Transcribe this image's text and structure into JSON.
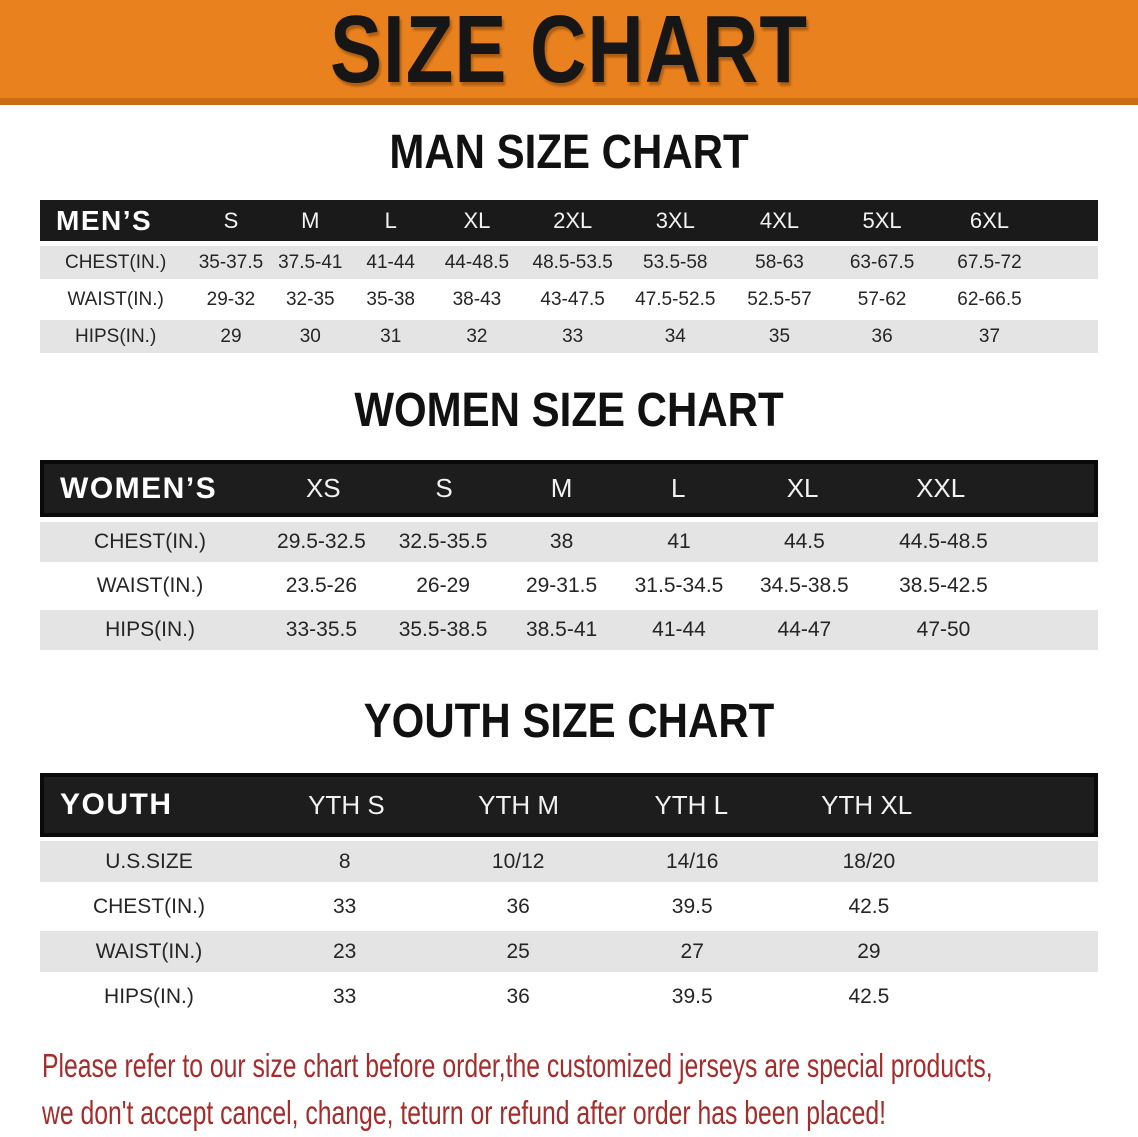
{
  "banner": {
    "title": "SIZE CHART"
  },
  "sections": [
    {
      "key": "men",
      "title": "MAN SIZE CHART",
      "table": {
        "header_label": "MEN’S",
        "columns": [
          "S",
          "M",
          "L",
          "XL",
          "2XL",
          "3XL",
          "4XL",
          "5XL",
          "6XL"
        ],
        "rows": [
          {
            "label": "CHEST(IN.)",
            "values": [
              "35-37.5",
              "37.5-41",
              "41-44",
              "44-48.5",
              "48.5-53.5",
              "53.5-58",
              "58-63",
              "63-67.5",
              "67.5-72"
            ]
          },
          {
            "label": "WAIST(IN.)",
            "values": [
              "29-32",
              "32-35",
              "35-38",
              "38-43",
              "43-47.5",
              "47.5-52.5",
              "52.5-57",
              "57-62",
              "62-66.5"
            ]
          },
          {
            "label": "HIPS(IN.)",
            "values": [
              "29",
              "30",
              "31",
              "32",
              "33",
              "34",
              "35",
              "36",
              "37"
            ]
          }
        ]
      }
    },
    {
      "key": "women",
      "title": "WOMEN SIZE CHART",
      "table": {
        "header_label": "WOMEN’S",
        "columns": [
          "XS",
          "S",
          "M",
          "L",
          "XL",
          "XXL"
        ],
        "rows": [
          {
            "label": "CHEST(IN.)",
            "values": [
              "29.5-32.5",
              "32.5-35.5",
              "38",
              "41",
              "44.5",
              "44.5-48.5"
            ]
          },
          {
            "label": "WAIST(IN.)",
            "values": [
              "23.5-26",
              "26-29",
              "29-31.5",
              "31.5-34.5",
              "34.5-38.5",
              "38.5-42.5"
            ]
          },
          {
            "label": "HIPS(IN.)",
            "values": [
              "33-35.5",
              "35.5-38.5",
              "38.5-41",
              "41-44",
              "44-47",
              "47-50"
            ]
          }
        ]
      }
    },
    {
      "key": "youth",
      "title": "YOUTH SIZE CHART",
      "table": {
        "header_label": "YOUTH",
        "columns": [
          "YTH S",
          "YTH M",
          "YTH L",
          "YTH XL"
        ],
        "rows": [
          {
            "label": "U.S.SIZE",
            "values": [
              "8",
              "10/12",
              "14/16",
              "18/20"
            ]
          },
          {
            "label": "CHEST(IN.)",
            "values": [
              "33",
              "36",
              "39.5",
              "42.5"
            ]
          },
          {
            "label": "WAIST(IN.)",
            "values": [
              "23",
              "25",
              "27",
              "29"
            ]
          },
          {
            "label": "HIPS(IN.)",
            "values": [
              "33",
              "36",
              "39.5",
              "42.5"
            ]
          }
        ]
      }
    }
  ],
  "footer": {
    "line1": "Please refer to our size chart before order,the customized jerseys are special products,",
    "line2": "we don't accept cancel, change, teturn or refund after order has been placed!"
  },
  "colors": {
    "banner_bg": "#E9821E",
    "banner_edge": "#C96F12",
    "header_bar": "#1A1A1A",
    "row_gray": "#E4E4E4",
    "footer_red": "#A62B2B"
  }
}
